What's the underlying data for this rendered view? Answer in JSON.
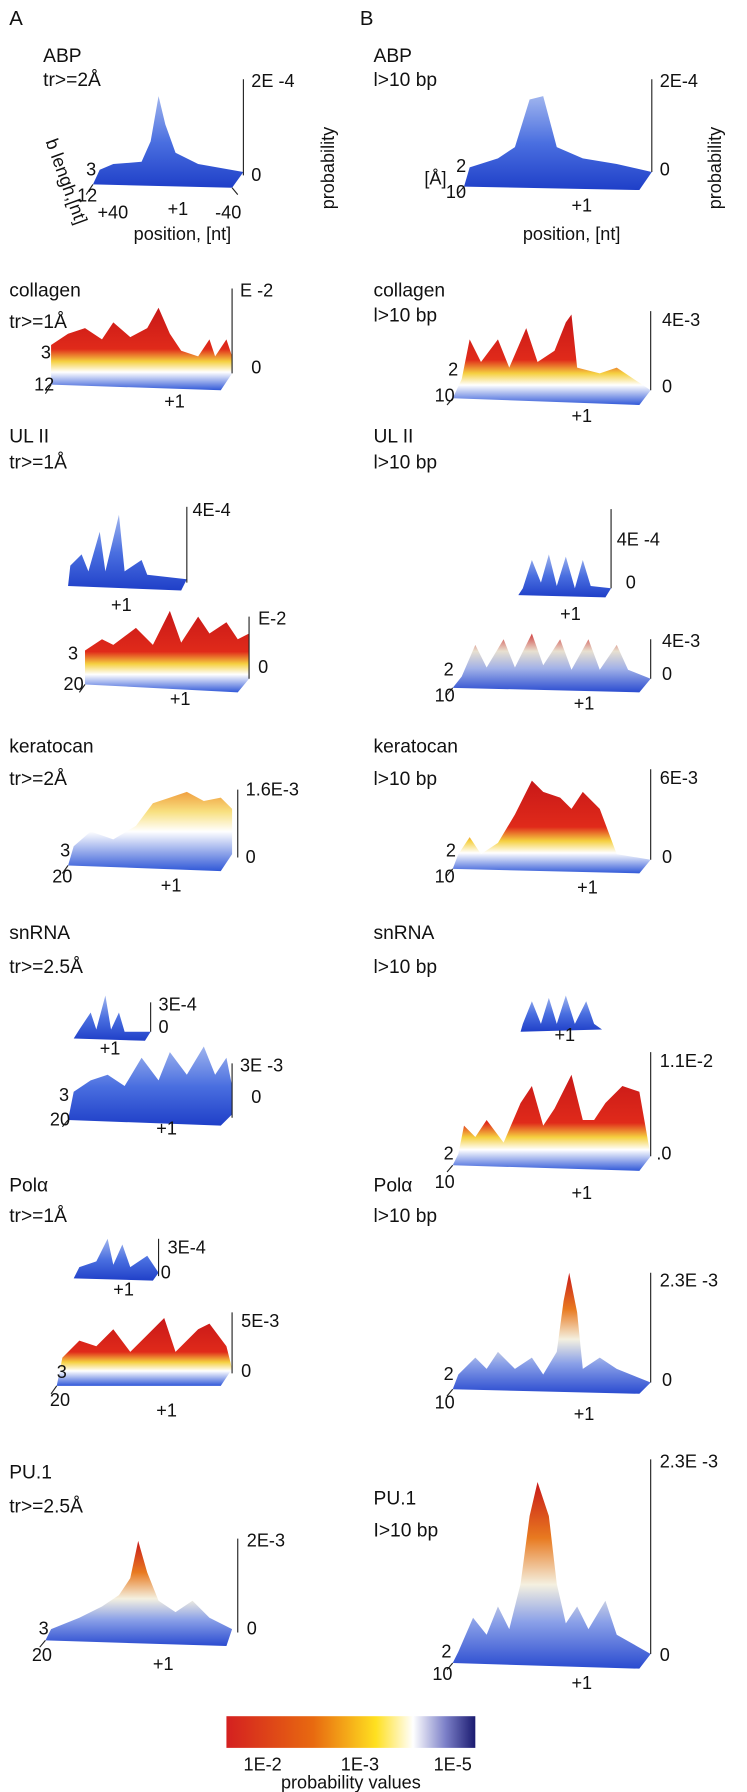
{
  "panel_labels": [
    "A",
    "B"
  ],
  "left": [
    {
      "name": "ABP",
      "condition": "tr>=2Å",
      "plots": [
        {
          "z_max": "2E -4",
          "z_min": "0",
          "y_ticks": [
            "3",
            "12"
          ],
          "x_ticks": [
            "+40",
            "+1",
            "-40"
          ],
          "z_label": "probability",
          "y_label": "b lengh,[nt]",
          "x_label": "position, [nt]"
        }
      ]
    },
    {
      "name": "collagen",
      "condition": "tr>=1Å",
      "plots": [
        {
          "z_max": "E -2",
          "z_min": "0",
          "y_ticks": [
            "3",
            "12"
          ],
          "x_ticks": [
            "+1"
          ]
        }
      ]
    },
    {
      "name": "UL II",
      "condition": "tr>=1Å",
      "plots": [
        {
          "z_max": "4E-4",
          "x_ticks": [
            "+1"
          ]
        },
        {
          "z_max": "E-2",
          "z_min": "0",
          "y_ticks": [
            "3",
            "20"
          ],
          "x_ticks": [
            "+1"
          ]
        }
      ]
    },
    {
      "name": "keratocan",
      "condition": "tr>=2Å",
      "plots": [
        {
          "z_max": "1.6E-3",
          "z_min": "0",
          "y_ticks": [
            "3",
            "20"
          ],
          "x_ticks": [
            "+1"
          ]
        }
      ]
    },
    {
      "name": "snRNA",
      "condition": "tr>=2.5Å",
      "plots": [
        {
          "z_max": "3E-4",
          "z_min": "0",
          "x_ticks": [
            "+1"
          ]
        },
        {
          "z_max": "3E -3",
          "z_min": "0",
          "y_ticks": [
            "3",
            "20"
          ],
          "x_ticks": [
            "+1"
          ]
        }
      ]
    },
    {
      "name": "Polα",
      "condition": "tr>=1Å",
      "plots": [
        {
          "z_max": "3E-4",
          "z_min": "0",
          "x_ticks": [
            "+1"
          ]
        },
        {
          "z_max": "5E-3",
          "z_min": "0",
          "y_ticks": [
            "3",
            "20"
          ],
          "x_ticks": [
            "+1"
          ]
        }
      ]
    },
    {
      "name": "PU.1",
      "condition": "tr>=2.5Å",
      "plots": [
        {
          "z_max": "2E-3",
          "z_min": "0",
          "y_ticks": [
            "3",
            "20"
          ],
          "x_ticks": [
            "+1"
          ]
        }
      ]
    }
  ],
  "right": [
    {
      "name": "ABP",
      "condition": "l>10 bp",
      "plots": [
        {
          "z_max": "2E-4",
          "z_min": "0",
          "y_ticks": [
            "2",
            "10"
          ],
          "x_ticks": [
            "+1"
          ],
          "z_label": "probability",
          "y_label": "[Å]",
          "x_label": "position, [nt]"
        }
      ]
    },
    {
      "name": "collagen",
      "condition": "l>10 bp",
      "plots": [
        {
          "z_max": "4E-3",
          "z_min": "0",
          "y_ticks": [
            "2",
            "10"
          ],
          "x_ticks": [
            "+1"
          ]
        }
      ]
    },
    {
      "name": "UL II",
      "condition": "l>10 bp",
      "plots": [
        {
          "z_max": "4E -4",
          "z_min": "0",
          "x_ticks": [
            "+1"
          ]
        },
        {
          "z_max": "4E-3",
          "z_min": "0",
          "y_ticks": [
            "2",
            "10"
          ],
          "x_ticks": [
            "+1"
          ]
        }
      ]
    },
    {
      "name": "keratocan",
      "condition": "l>10 bp",
      "plots": [
        {
          "z_max": "6E-3",
          "z_min": "0",
          "y_ticks": [
            "2",
            "10"
          ],
          "x_ticks": [
            "+1"
          ]
        }
      ]
    },
    {
      "name": "snRNA",
      "condition": "l>10 bp",
      "plots": [
        {
          "x_ticks": [
            "+1"
          ]
        },
        {
          "z_max": "1.1E-2",
          "z_min": ".0",
          "y_ticks": [
            "2",
            "10"
          ],
          "x_ticks": [
            "+1"
          ]
        }
      ]
    },
    {
      "name": "Polα",
      "condition": "l>10 bp",
      "plots": [
        {
          "z_max": "2.3E -3",
          "z_min": "0",
          "y_ticks": [
            "2",
            "10"
          ],
          "x_ticks": [
            "+1"
          ]
        }
      ]
    },
    {
      "name": "PU.1",
      "condition": "I>10 bp",
      "plots": [
        {
          "z_max": "2.3E -3",
          "z_min": "0",
          "y_ticks": [
            "2",
            "10"
          ],
          "x_ticks": [
            "+1"
          ]
        }
      ]
    }
  ],
  "colorbar": {
    "ticks": [
      "1E-2",
      "1E-3",
      "1E-5"
    ],
    "label": "probability values"
  }
}
